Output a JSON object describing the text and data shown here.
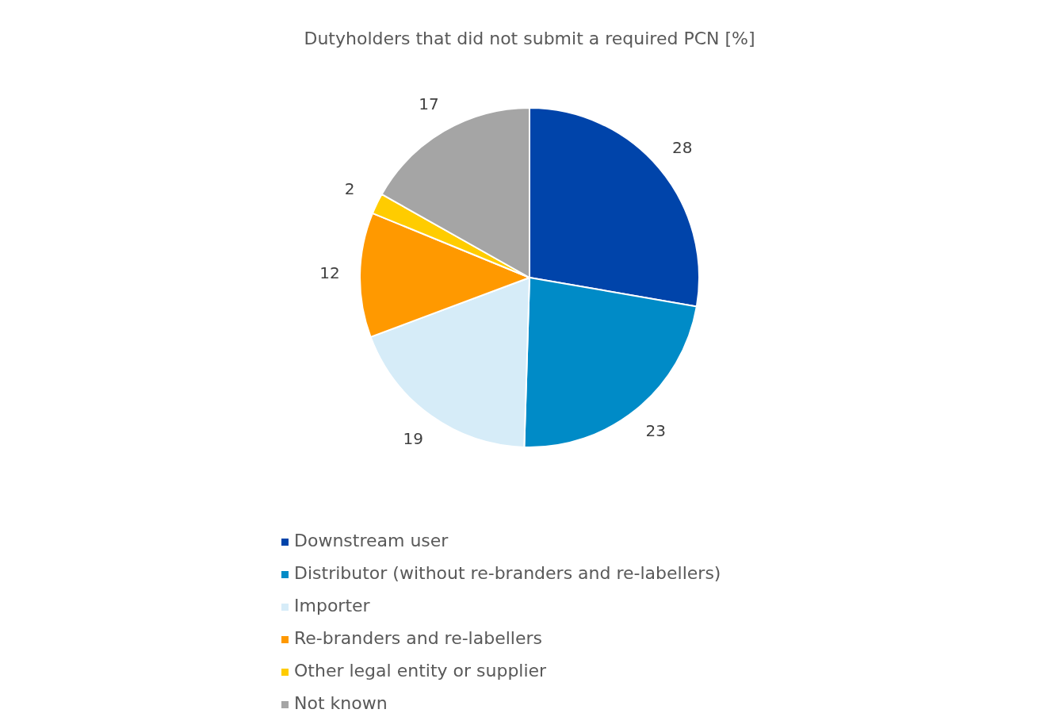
{
  "chart_data": {
    "type": "pie",
    "title": "Dutyholders that did not submit a required PCN [%]",
    "categories": [
      "Downstream user",
      "Distributor (without re-branders and re-labellers)",
      "Importer",
      "Re-branders and re-labellers",
      "Other legal entity or supplier",
      "Not known"
    ],
    "values": [
      28,
      23,
      19,
      12,
      2,
      17
    ],
    "colors": [
      "#0044aa",
      "#008bc7",
      "#d6ecf8",
      "#ff9900",
      "#ffcc00",
      "#a5a5a5"
    ],
    "data_labels": true,
    "legend": "bottom"
  }
}
